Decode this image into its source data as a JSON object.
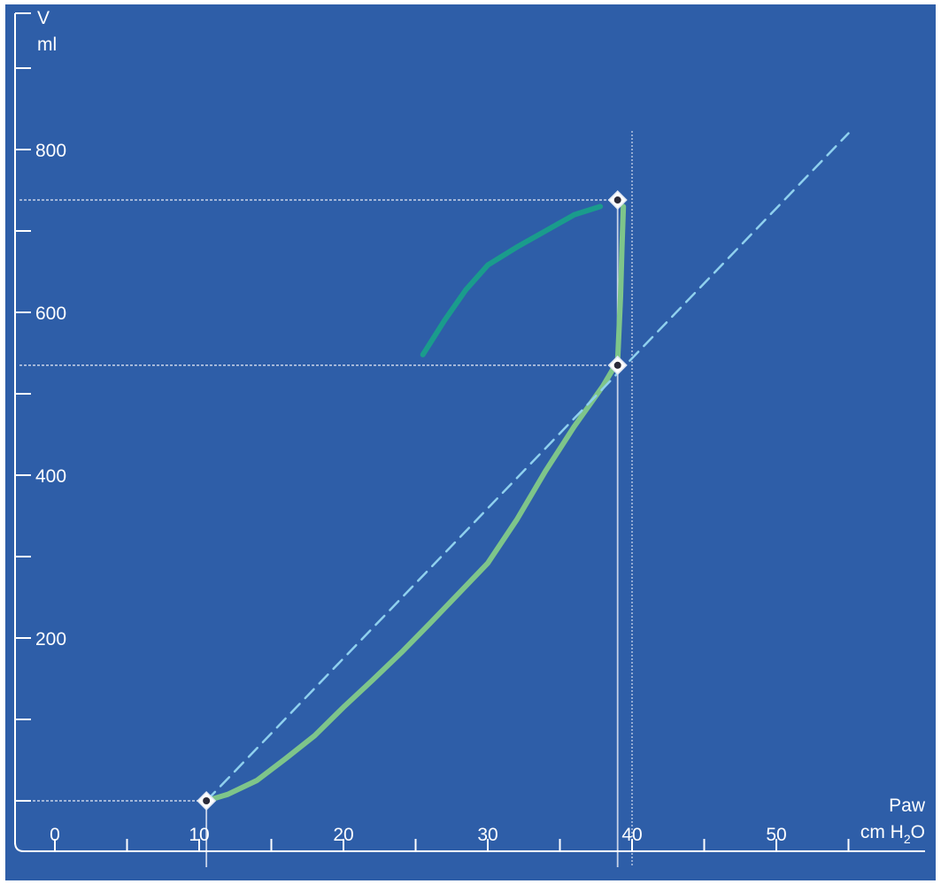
{
  "chart_data": {
    "type": "line",
    "y_axis": {
      "label": "V",
      "unit": "ml",
      "ticks": [
        200,
        400,
        600,
        800
      ],
      "range": [
        -90,
        900
      ]
    },
    "x_axis": {
      "label": "Paw",
      "unit_prefix": "cm H",
      "unit_sub": "2",
      "unit_suffix": "O",
      "ticks": [
        0,
        10,
        20,
        30,
        40,
        50
      ],
      "range": [
        -2,
        60
      ]
    },
    "grid": false,
    "colors": {
      "background": "#2e5ea8",
      "axis": "#ffffff",
      "inflation": "#7ec58a",
      "deflation": "#1a9c8c",
      "reference_line": "#8fd0ee",
      "guide": "#c8d3e8"
    },
    "series": [
      {
        "key": "inflation",
        "style": "solid",
        "points": [
          [
            10.5,
            0
          ],
          [
            12,
            8
          ],
          [
            14,
            25
          ],
          [
            16,
            52
          ],
          [
            18,
            80
          ],
          [
            20,
            115
          ],
          [
            22,
            148
          ],
          [
            24,
            182
          ],
          [
            26,
            218
          ],
          [
            28,
            255
          ],
          [
            30,
            292
          ],
          [
            32,
            345
          ],
          [
            34,
            405
          ],
          [
            36,
            460
          ],
          [
            38,
            510
          ],
          [
            39,
            540
          ],
          [
            39.2,
            620
          ],
          [
            39.3,
            680
          ],
          [
            39.4,
            730
          ]
        ]
      },
      {
        "key": "deflation",
        "style": "solid",
        "points": [
          [
            37.8,
            730
          ],
          [
            36,
            720
          ],
          [
            34,
            700
          ],
          [
            32,
            680
          ],
          [
            30,
            658
          ],
          [
            28.5,
            628
          ],
          [
            27,
            590
          ],
          [
            25.5,
            548
          ]
        ]
      },
      {
        "key": "compliance_line",
        "style": "dashed",
        "points": [
          [
            10.5,
            0
          ],
          [
            55,
            820
          ]
        ]
      }
    ],
    "markers": [
      {
        "key": "start",
        "x": 10.5,
        "y": 0
      },
      {
        "key": "inflection",
        "x": 39,
        "y": 535
      },
      {
        "key": "peak",
        "x": 39,
        "y": 738
      }
    ],
    "guides": {
      "horizontal": [
        {
          "y": 738,
          "x_to": 39
        },
        {
          "y": 535,
          "x_to": 39
        },
        {
          "y": 0,
          "x_to": 10.5
        }
      ],
      "vertical": [
        {
          "x": 39,
          "style": "solid"
        },
        {
          "x": 40,
          "style": "dotted"
        },
        {
          "x": 10.5,
          "style": "solid"
        }
      ]
    }
  }
}
